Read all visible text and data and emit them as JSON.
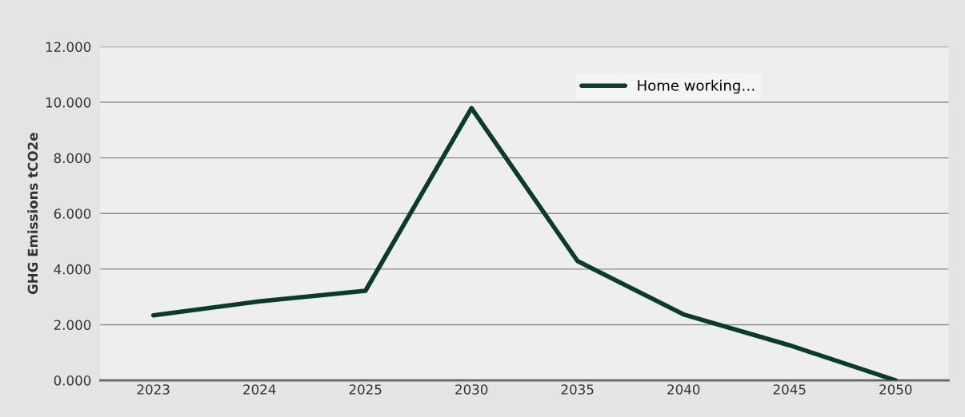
{
  "chart_data": {
    "type": "line",
    "ylabel": "GHG Emissions tCO2e",
    "categories": [
      "2023",
      "2024",
      "2025",
      "2030",
      "2035",
      "2040",
      "2045",
      "2050"
    ],
    "series": [
      {
        "name": "Home working…",
        "color": "#0b3b2a",
        "values": [
          2.34,
          2.84,
          3.22,
          9.79,
          4.29,
          2.37,
          1.26,
          0.0
        ]
      }
    ],
    "ylim": [
      0,
      12
    ],
    "yticks": [
      {
        "value": 0,
        "label": "0.000"
      },
      {
        "value": 2,
        "label": "2.000"
      },
      {
        "value": 4,
        "label": "4.000"
      },
      {
        "value": 6,
        "label": "6.000"
      },
      {
        "value": 8,
        "label": "8.000"
      },
      {
        "value": 10,
        "label": "10.000"
      },
      {
        "value": 12,
        "label": "12.000"
      }
    ],
    "grid": "y",
    "legend": "top",
    "marker": "none",
    "line_style": "solid"
  }
}
